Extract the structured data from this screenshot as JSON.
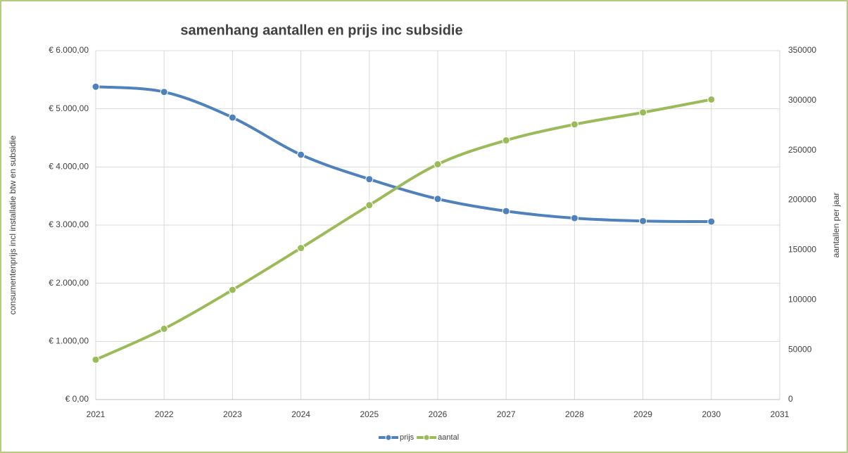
{
  "chart_data": {
    "type": "line",
    "title": "samenhang aantallen en  prijs inc subsidie",
    "y_label": "consumentenprijs incl installatie btw en subsidie",
    "y2_label": "aantallen per jaar",
    "x": [
      2021,
      2022,
      2023,
      2024,
      2025,
      2026,
      2027,
      2028,
      2029,
      2030
    ],
    "xlim": [
      2021,
      2031
    ],
    "xticks": [
      2021,
      2022,
      2023,
      2024,
      2025,
      2026,
      2027,
      2028,
      2029,
      2030,
      2031
    ],
    "ylim": [
      0,
      6000
    ],
    "yticks": [
      {
        "value": 0,
        "label": "€ 0,00"
      },
      {
        "value": 1000,
        "label": "€ 1.000,00"
      },
      {
        "value": 2000,
        "label": "€ 2.000,00"
      },
      {
        "value": 3000,
        "label": "€ 3.000,00"
      },
      {
        "value": 4000,
        "label": "€ 4.000,00"
      },
      {
        "value": 5000,
        "label": "€ 5.000,00"
      },
      {
        "value": 6000,
        "label": "€ 6.000,00"
      }
    ],
    "y2lim": [
      0,
      350000
    ],
    "y2ticks": [
      0,
      50000,
      100000,
      150000,
      200000,
      250000,
      300000,
      350000
    ],
    "grid": true,
    "legend": "bottom",
    "series": [
      {
        "name": "prijs",
        "color": "#4f81bd",
        "axis": "y",
        "values": [
          5380,
          5290,
          4850,
          4210,
          3790,
          3450,
          3240,
          3120,
          3070,
          3060
        ]
      },
      {
        "name": "aantal",
        "color": "#9bbb59",
        "axis": "y2",
        "values": [
          40000,
          71000,
          110000,
          152000,
          195000,
          236000,
          260000,
          276000,
          288000,
          301000
        ]
      }
    ]
  }
}
